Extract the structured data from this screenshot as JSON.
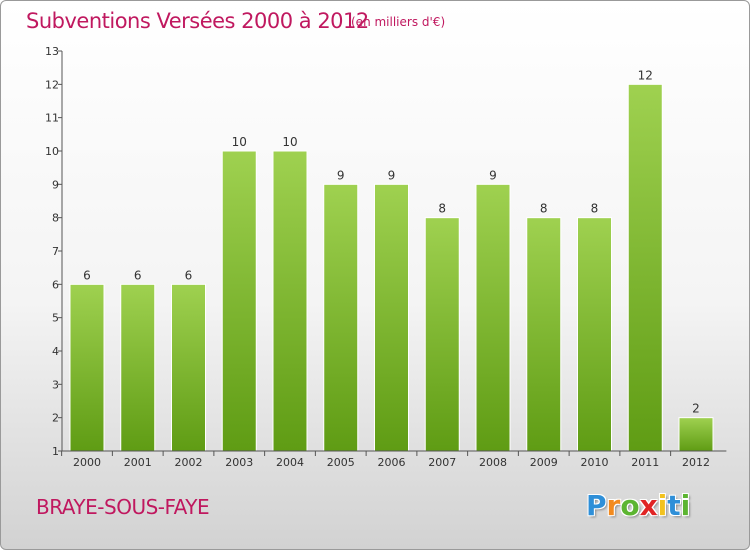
{
  "title": "Subventions Versées 2000 à 2012",
  "subtitle": "(en milliers d'€)",
  "commune": "BRAYE-SOUS-FAYE",
  "logo": {
    "letters": [
      "P",
      "r",
      "o",
      "x",
      "i",
      "t",
      "i"
    ],
    "colors": [
      "#2e8fd8",
      "#f28a1e",
      "#5cb531",
      "#e02424",
      "#f2c21e",
      "#2e8fd8",
      "#5cb531"
    ]
  },
  "colors": {
    "bar_top": "#9fd150",
    "bar_bottom": "#5f9c14",
    "text_accent": "#c0185f",
    "axis": "#555555"
  },
  "chart_data": {
    "type": "bar",
    "title": "Subventions Versées 2000 à 2012",
    "subtitle": "(en milliers d'€)",
    "xlabel": "",
    "ylabel": "",
    "categories": [
      "2000",
      "2001",
      "2002",
      "2003",
      "2004",
      "2005",
      "2006",
      "2007",
      "2008",
      "2009",
      "2010",
      "2011",
      "2012"
    ],
    "values": [
      6,
      6,
      6,
      10,
      10,
      9,
      9,
      8,
      9,
      8,
      8,
      12,
      2
    ],
    "ylim": [
      1,
      13
    ],
    "yticks": [
      1,
      2,
      3,
      4,
      5,
      6,
      7,
      8,
      9,
      10,
      11,
      12,
      13
    ],
    "grid": false,
    "legend": "none",
    "data_labels": true
  }
}
